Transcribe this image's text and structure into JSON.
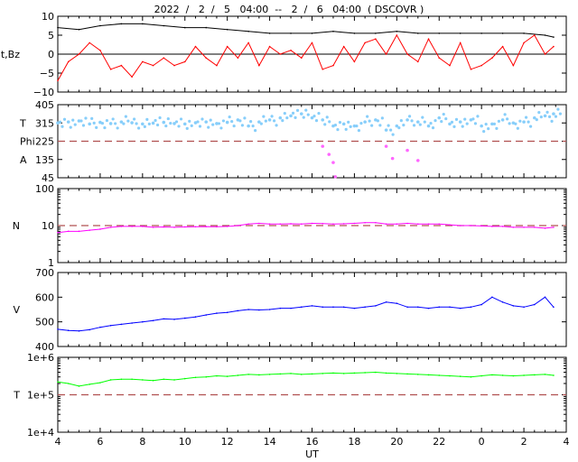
{
  "title": "2022  /   2  /   5   04:00  --   2  /   6   04:00  ( DSCOVR )",
  "x_axis": {
    "label": "UT",
    "ticks": [
      "4",
      "6",
      "8",
      "10",
      "12",
      "14",
      "16",
      "18",
      "20",
      "22",
      "0",
      "2",
      "4"
    ],
    "range_hours": [
      4,
      28
    ]
  },
  "colors": {
    "bt": "#000000",
    "bz": "#ff0000",
    "temp": "#87cefa",
    "phi": "#ff66ff",
    "density": "#ff00ff",
    "speed": "#0000ff",
    "ion_temp": "#00ff00",
    "ref_line": "#b05050"
  },
  "chart_data": [
    {
      "type": "line",
      "panel": "Magnetic field",
      "ylabel": "Bt,Bz",
      "ylim": [
        -10,
        10
      ],
      "yticks": [
        "10",
        "5",
        "0",
        "−5",
        "−10"
      ],
      "reference_line": 0,
      "series": [
        {
          "key": "bt",
          "x": [
            4,
            5,
            6,
            7,
            8,
            9,
            10,
            11,
            12,
            13,
            14,
            15,
            16,
            17,
            18,
            19,
            20,
            21,
            22,
            23,
            24,
            25,
            26,
            27,
            27.4
          ],
          "values": [
            7,
            6.5,
            7.5,
            8,
            8,
            7.5,
            7,
            7,
            6.5,
            6,
            5.5,
            5.5,
            5.5,
            6,
            5.5,
            5.5,
            6,
            5.5,
            5.5,
            5.5,
            5.5,
            5.5,
            5.5,
            5,
            4.5
          ]
        },
        {
          "key": "bz",
          "x": [
            4,
            4.5,
            5,
            5.5,
            6,
            6.5,
            7,
            7.5,
            8,
            8.5,
            9,
            9.5,
            10,
            10.5,
            11,
            11.5,
            12,
            12.5,
            13,
            13.5,
            14,
            14.5,
            15,
            15.5,
            16,
            16.5,
            17,
            17.5,
            18,
            18.5,
            19,
            19.5,
            20,
            20.5,
            21,
            21.5,
            22,
            22.5,
            23,
            23.5,
            24,
            24.5,
            25,
            25.5,
            26,
            26.5,
            27,
            27.4
          ],
          "values": [
            -7,
            -2,
            0,
            3,
            1,
            -4,
            -3,
            -6,
            -2,
            -3,
            -1,
            -3,
            -2,
            2,
            -1,
            -3,
            2,
            -1,
            3,
            -3,
            2,
            0,
            1,
            -1,
            3,
            -4,
            -3,
            2,
            -2,
            3,
            4,
            0,
            5,
            0,
            -2,
            4,
            -1,
            -3,
            3,
            -4,
            -3,
            -1,
            2,
            -3,
            3,
            5,
            0,
            2
          ]
        }
      ]
    },
    {
      "type": "scatter",
      "panel": "Plasma temperature and angle",
      "ylabels": [
        "T",
        "Phi",
        "A"
      ],
      "ylim": [
        45,
        405
      ],
      "yticks": [
        "405",
        "315",
        "225",
        "135",
        "45"
      ],
      "reference_line": 225,
      "series": [
        {
          "key": "temp",
          "x": [
            4,
            4.5,
            5,
            5.5,
            6,
            6.5,
            7,
            7.5,
            8,
            8.5,
            9,
            9.5,
            10,
            10.5,
            11,
            11.5,
            12,
            12.5,
            13,
            13.5,
            14,
            14.5,
            15,
            15.5,
            16,
            16.5,
            17,
            17.5,
            18,
            18.5,
            19,
            19.5,
            20,
            20.5,
            21,
            21.5,
            22,
            22.5,
            23,
            23.5,
            24,
            24.5,
            25,
            25.5,
            26,
            26.5,
            27,
            27.4
          ],
          "values": [
            315,
            320,
            325,
            310,
            318,
            312,
            320,
            316,
            310,
            314,
            318,
            312,
            310,
            316,
            320,
            312,
            318,
            330,
            300,
            320,
            330,
            340,
            350,
            360,
            340,
            330,
            300,
            310,
            300,
            320,
            330,
            280,
            300,
            330,
            320,
            300,
            340,
            310,
            320,
            330,
            300,
            310,
            330,
            315,
            320,
            340,
            350,
            360
          ]
        },
        {
          "key": "phi",
          "x": [
            16.5,
            16.8,
            17,
            17.1,
            19.5,
            19.8,
            20.5,
            21
          ],
          "values": [
            200,
            160,
            120,
            50,
            200,
            140,
            180,
            130
          ]
        }
      ]
    },
    {
      "type": "line",
      "panel": "Density",
      "ylabel": "N",
      "scale": "log",
      "ylim": [
        1,
        100
      ],
      "yticks": [
        "100",
        "10",
        "1"
      ],
      "reference_line": 10,
      "series": [
        {
          "key": "density",
          "x": [
            4,
            4.5,
            5,
            5.5,
            6,
            6.5,
            7,
            7.5,
            8,
            8.5,
            9,
            9.5,
            10,
            10.5,
            11,
            11.5,
            12,
            12.5,
            13,
            13.5,
            14,
            14.5,
            15,
            15.5,
            16,
            16.5,
            17,
            17.5,
            18,
            18.5,
            19,
            19.5,
            20,
            20.5,
            21,
            21.5,
            22,
            22.5,
            23,
            23.5,
            24,
            24.5,
            25,
            25.5,
            26,
            26.5,
            27,
            27.4
          ],
          "values": [
            6.5,
            7,
            7,
            7.5,
            8,
            9,
            9.5,
            9.5,
            9.5,
            9,
            9.2,
            9,
            9.2,
            9.3,
            9.4,
            9.3,
            9.5,
            10,
            11,
            11.5,
            11,
            11,
            11.2,
            11,
            11.5,
            11.3,
            11,
            11.2,
            11.5,
            12,
            12,
            11,
            11,
            11.5,
            11,
            11,
            11,
            10.5,
            10,
            10,
            9.8,
            9.5,
            9.5,
            9,
            9,
            9,
            8.5,
            9
          ]
        }
      ]
    },
    {
      "type": "line",
      "panel": "Speed",
      "ylabel": "V",
      "ylim": [
        400,
        700
      ],
      "yticks": [
        "700",
        "600",
        "500",
        "400"
      ],
      "series": [
        {
          "key": "speed",
          "x": [
            4,
            4.5,
            5,
            5.5,
            6,
            6.5,
            7,
            7.5,
            8,
            8.5,
            9,
            9.5,
            10,
            10.5,
            11,
            11.5,
            12,
            12.5,
            13,
            13.5,
            14,
            14.5,
            15,
            15.5,
            16,
            16.5,
            17,
            17.5,
            18,
            18.5,
            19,
            19.5,
            20,
            20.5,
            21,
            21.5,
            22,
            22.5,
            23,
            23.5,
            24,
            24.5,
            25,
            25.5,
            26,
            26.5,
            27,
            27.4
          ],
          "values": [
            470,
            465,
            463,
            468,
            478,
            485,
            490,
            495,
            500,
            505,
            512,
            510,
            515,
            520,
            528,
            535,
            538,
            545,
            550,
            548,
            550,
            555,
            555,
            560,
            565,
            560,
            560,
            560,
            555,
            560,
            565,
            580,
            575,
            560,
            560,
            555,
            560,
            560,
            555,
            560,
            570,
            600,
            580,
            565,
            560,
            570,
            600,
            560
          ]
        }
      ]
    },
    {
      "type": "line",
      "panel": "Ion temperature",
      "ylabel": "T",
      "scale": "log",
      "ylim": [
        10000,
        1000000
      ],
      "yticks": [
        "1e+6",
        "1e+5",
        "1e+4"
      ],
      "reference_line": 100000,
      "series": [
        {
          "key": "ion_temp",
          "x": [
            4,
            4.5,
            5,
            5.5,
            6,
            6.5,
            7,
            7.5,
            8,
            8.5,
            9,
            9.5,
            10,
            10.5,
            11,
            11.5,
            12,
            12.5,
            13,
            13.5,
            14,
            14.5,
            15,
            15.5,
            16,
            16.5,
            17,
            17.5,
            18,
            18.5,
            19,
            19.5,
            20,
            20.5,
            21,
            21.5,
            22,
            22.5,
            23,
            23.5,
            24,
            24.5,
            25,
            25.5,
            26,
            26.5,
            27,
            27.4
          ],
          "values": [
            220000,
            200000,
            170000,
            190000,
            210000,
            250000,
            260000,
            260000,
            250000,
            240000,
            260000,
            250000,
            270000,
            290000,
            300000,
            320000,
            310000,
            330000,
            350000,
            340000,
            350000,
            360000,
            370000,
            350000,
            360000,
            370000,
            380000,
            370000,
            380000,
            390000,
            400000,
            380000,
            370000,
            360000,
            350000,
            340000,
            330000,
            320000,
            310000,
            300000,
            320000,
            340000,
            330000,
            320000,
            330000,
            340000,
            350000,
            330000
          ]
        }
      ]
    }
  ]
}
